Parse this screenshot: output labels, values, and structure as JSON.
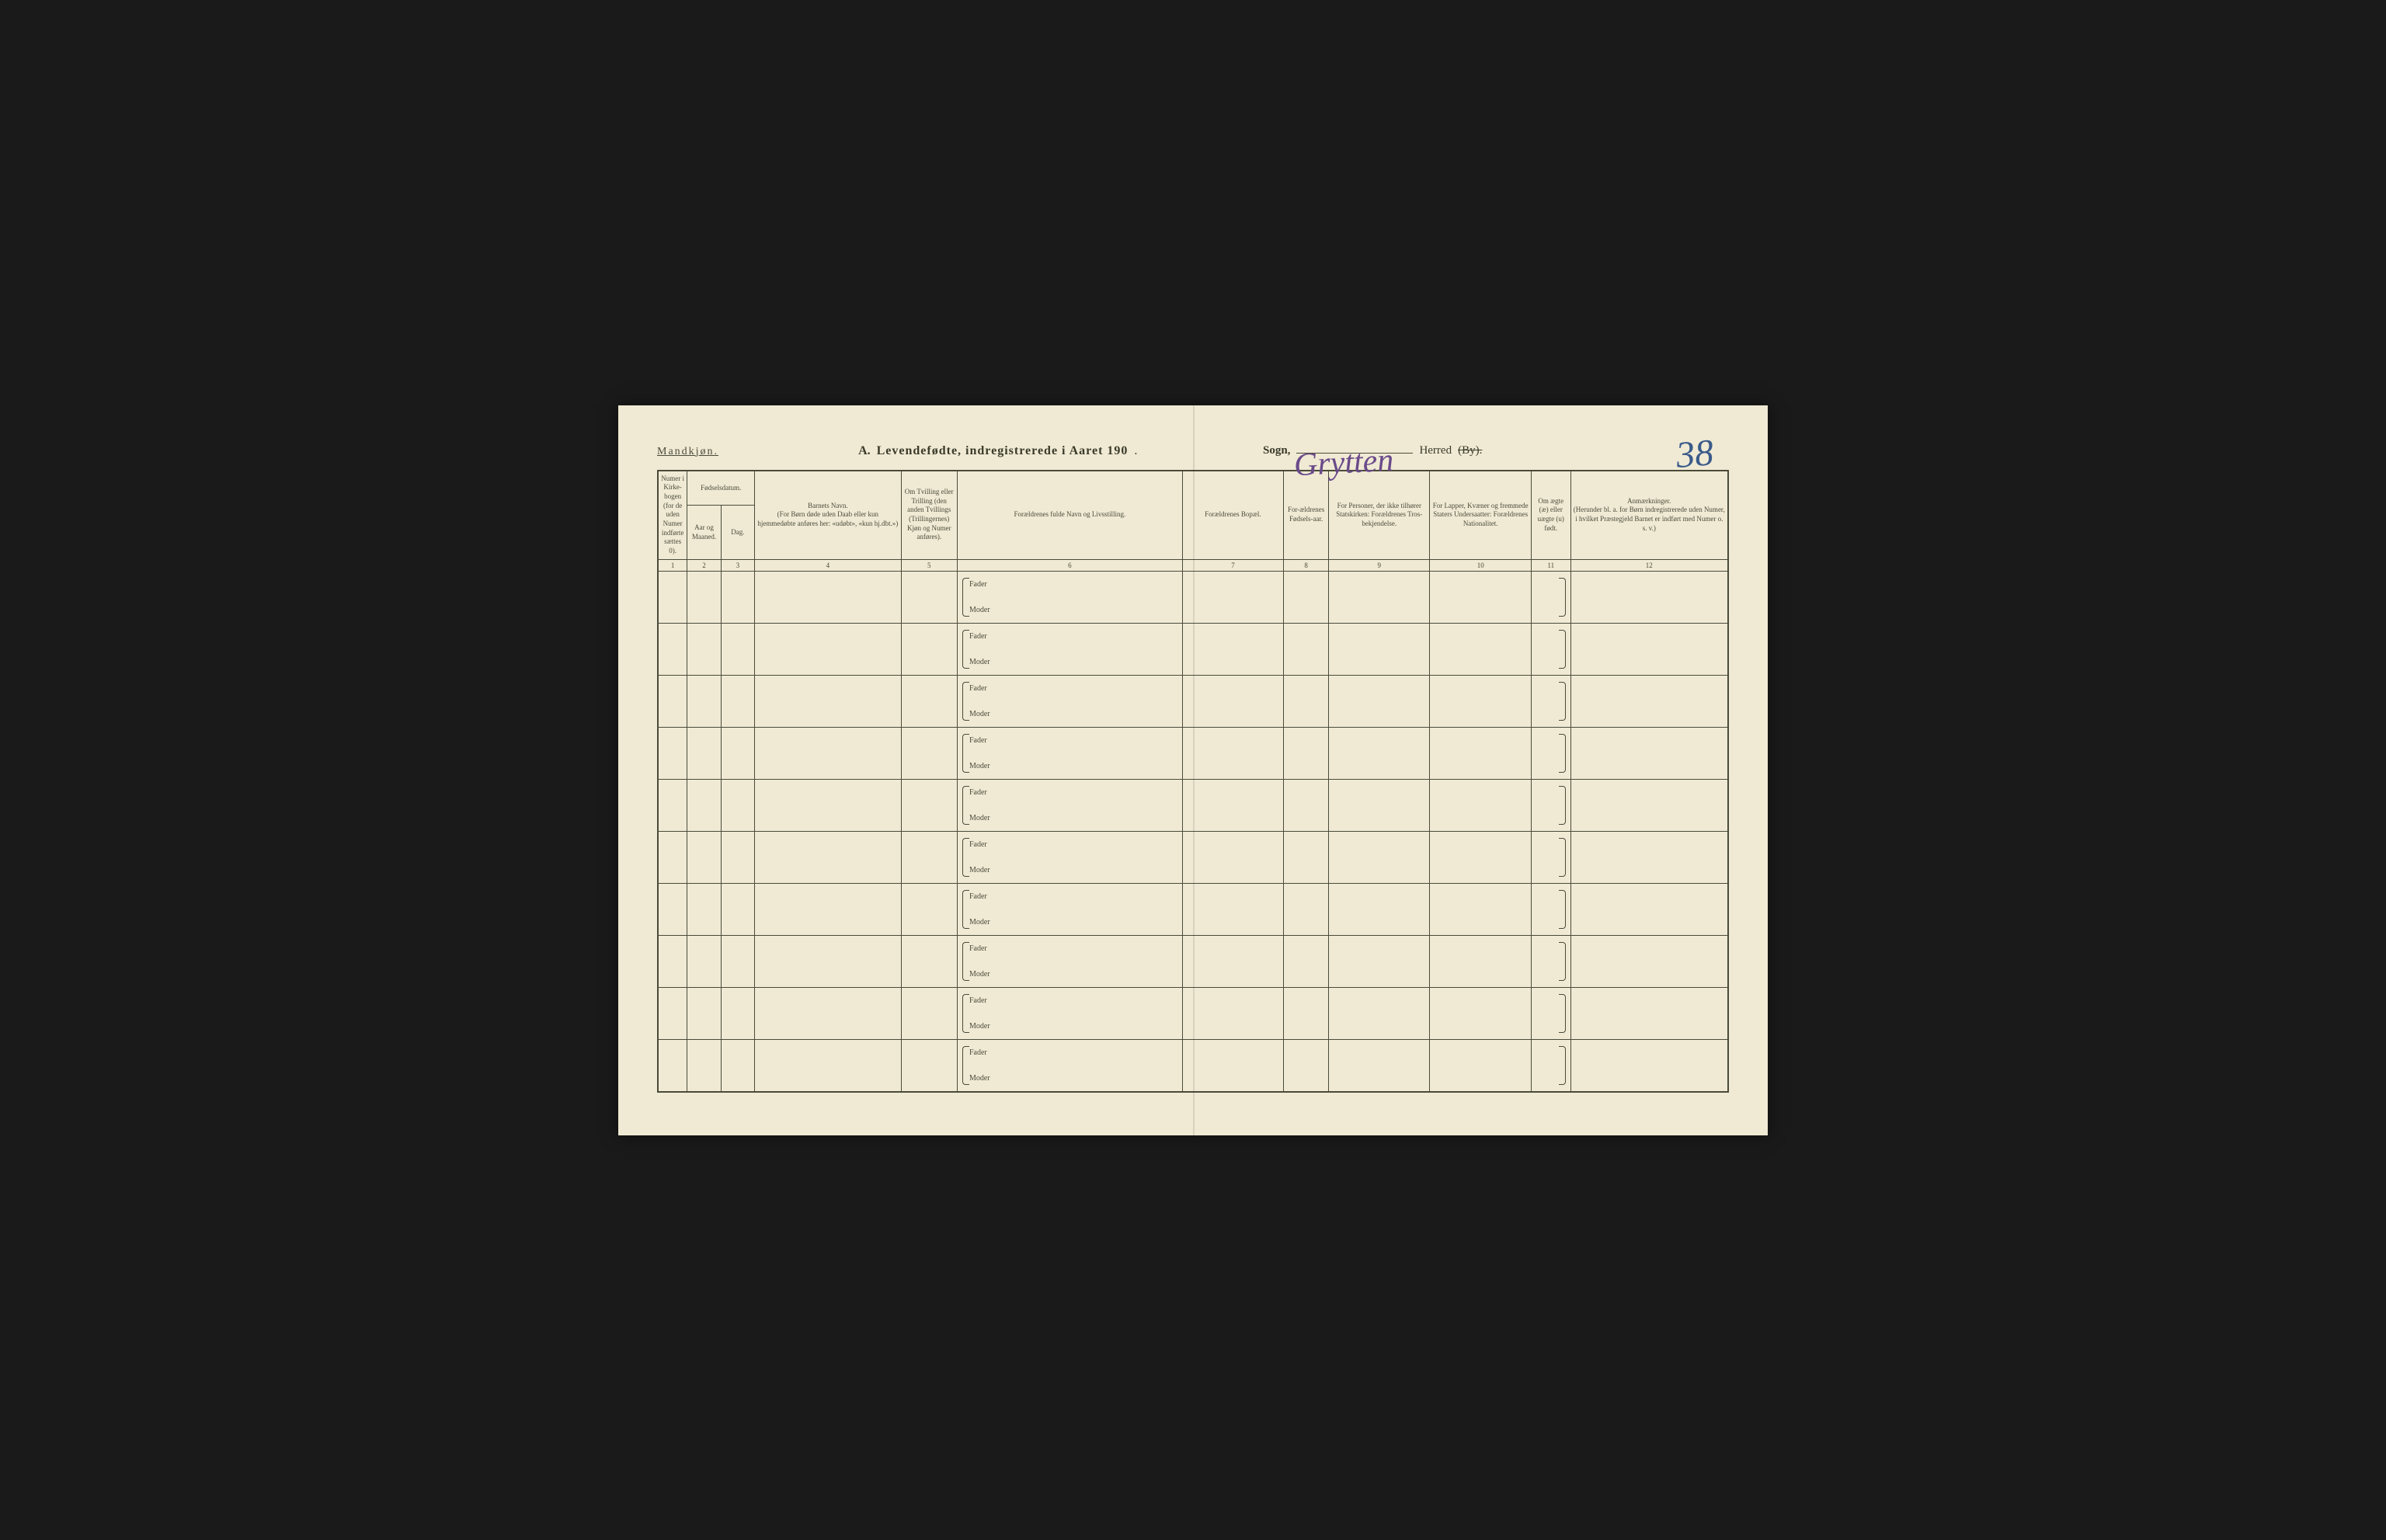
{
  "page_number_handwritten": "38",
  "handwritten_sogn": "Grytten",
  "header": {
    "gender_label": "Mandkjøn.",
    "title_prefix": "A.",
    "title_main": "Levendefødte, indregistrerede i Aaret 190",
    "title_suffix": ".",
    "sogn_label": "Sogn,",
    "herred_label": "Herred",
    "by_label": "(By)."
  },
  "columns": {
    "col1": {
      "header": "Numer i Kirke-bogen (for de uden Numer indførte sættes 0).",
      "number": "1"
    },
    "col2": {
      "header": "Fødselsdatum.",
      "sub_aar": "Aar og Maaned.",
      "sub_dag": "Dag.",
      "number_aar": "2",
      "number_dag": "3"
    },
    "col4": {
      "header": "Barnets Navn.",
      "sub": "(For Børn døde uden Daab eller kun hjemmedøbte anføres her: «udøbt», «kun hj.dbt.»)",
      "number": "4"
    },
    "col5": {
      "header": "Om Tvilling eller Trilling (den anden Tvillings (Trillingernes) Kjøn og Numer anføres).",
      "number": "5"
    },
    "col6": {
      "header": "Forældrenes fulde Navn og Livsstilling.",
      "number": "6"
    },
    "col7": {
      "header": "Forældrenes Bopæl.",
      "number": "7"
    },
    "col8": {
      "header": "For-ældrenes Fødsels-aar.",
      "number": "8"
    },
    "col9": {
      "header": "For Personer, der ikke tilhører Statskirken: Forældrenes Tros-bekjendelse.",
      "number": "9"
    },
    "col10": {
      "header": "For Lapper, Kvæner og fremmede Staters Undersaatter: Forældrenes Nationalitet.",
      "number": "10"
    },
    "col11": {
      "header": "Om ægte (æ) eller uægte (u) født.",
      "number": "11"
    },
    "col12": {
      "header": "Anmærkninger.",
      "sub": "(Herunder bl. a. for Børn indregistrerede uden Numer, i hvilket Præstegjeld Barnet er indført med Numer o. s. v.)",
      "number": "12"
    }
  },
  "row_labels": {
    "fader": "Fader",
    "moder": "Moder"
  },
  "num_data_rows": 10,
  "colors": {
    "paper": "#f0ead4",
    "ink": "#4a4a3a",
    "handwriting_blue": "#3a5a8a",
    "handwriting_purple": "#6a4a8a"
  }
}
